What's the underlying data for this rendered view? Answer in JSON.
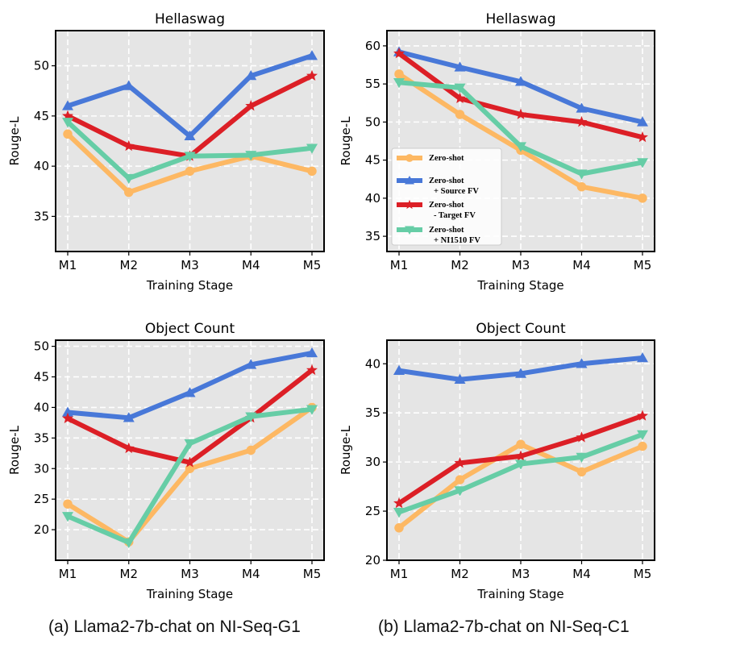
{
  "colors": {
    "zeroshot": "#FDB863",
    "source": "#4878D8",
    "target": "#DC1F26",
    "ni1510": "#66CDA6",
    "panel_bg": "#E5E5E5",
    "grid": "#FFFFFF"
  },
  "captions": {
    "a": "(a) Llama2-7b-chat on NI-Seq-G1",
    "b": "(b) Llama2-7b-chat on NI-Seq-C1"
  },
  "legend": [
    {
      "key": "zeroshot",
      "lines": [
        "Zero-shot"
      ],
      "marker": "circle"
    },
    {
      "key": "source",
      "lines": [
        "Zero-shot",
        "+ Source FV"
      ],
      "marker": "triangle-up"
    },
    {
      "key": "target",
      "lines": [
        "Zero-shot",
        "- Target FV"
      ],
      "marker": "star"
    },
    {
      "key": "ni1510",
      "lines": [
        "Zero-shot",
        "+ NI1510 FV"
      ],
      "marker": "triangle-down"
    }
  ],
  "chart_data": [
    {
      "type": "line",
      "title": "Hellaswag",
      "xlabel": "Training Stage",
      "ylabel": "Rouge-L",
      "categories": [
        "M1",
        "M2",
        "M3",
        "M4",
        "M5"
      ],
      "ylim": [
        31.5,
        53.5
      ],
      "yticks": [
        35,
        40,
        45,
        50
      ],
      "series": [
        {
          "key": "zeroshot",
          "name": "Zero-shot",
          "values": [
            43.2,
            37.4,
            39.5,
            41.0,
            39.5
          ]
        },
        {
          "key": "source",
          "name": "Zero-shot + Source FV",
          "values": [
            46.0,
            48.0,
            43.0,
            49.0,
            51.0
          ]
        },
        {
          "key": "target",
          "name": "Zero-shot - Target FV",
          "values": [
            45.0,
            42.0,
            41.0,
            46.0,
            49.0
          ]
        },
        {
          "key": "ni1510",
          "name": "Zero-shot + NI1510 FV",
          "values": [
            44.4,
            38.8,
            41.0,
            41.1,
            41.8
          ]
        }
      ]
    },
    {
      "type": "line",
      "title": "Hellaswag",
      "xlabel": "Training Stage",
      "ylabel": "Rouge-L",
      "categories": [
        "M1",
        "M2",
        "M3",
        "M4",
        "M5"
      ],
      "ylim": [
        33.0,
        62.0
      ],
      "yticks": [
        35,
        40,
        45,
        50,
        55,
        60
      ],
      "legend_location": "center-left",
      "series": [
        {
          "key": "zeroshot",
          "name": "Zero-shot",
          "values": [
            56.3,
            51.0,
            46.3,
            41.5,
            40.0
          ]
        },
        {
          "key": "source",
          "name": "Zero-shot + Source FV",
          "values": [
            59.2,
            57.2,
            55.3,
            51.8,
            50.0
          ]
        },
        {
          "key": "target",
          "name": "Zero-shot - Target FV",
          "values": [
            59.0,
            53.1,
            51.0,
            50.0,
            48.0
          ]
        },
        {
          "key": "ni1510",
          "name": "Zero-shot + NI1510 FV",
          "values": [
            55.2,
            54.5,
            46.8,
            43.2,
            44.7
          ]
        }
      ]
    },
    {
      "type": "line",
      "title": "Object Count",
      "xlabel": "Training Stage",
      "ylabel": "Rouge-L",
      "categories": [
        "M1",
        "M2",
        "M3",
        "M4",
        "M5"
      ],
      "ylim": [
        15.0,
        51.0
      ],
      "yticks": [
        20,
        25,
        30,
        35,
        40,
        45,
        50
      ],
      "series": [
        {
          "key": "zeroshot",
          "name": "Zero-shot",
          "values": [
            24.2,
            18.0,
            30.0,
            33.0,
            40.0
          ]
        },
        {
          "key": "source",
          "name": "Zero-shot + Source FV",
          "values": [
            39.2,
            38.3,
            42.4,
            47.0,
            48.9
          ]
        },
        {
          "key": "target",
          "name": "Zero-shot - Target FV",
          "values": [
            38.2,
            33.3,
            31.0,
            38.3,
            46.1
          ]
        },
        {
          "key": "ni1510",
          "name": "Zero-shot + NI1510 FV",
          "values": [
            22.2,
            17.9,
            34.1,
            38.5,
            39.7
          ]
        }
      ]
    },
    {
      "type": "line",
      "title": "Object Count",
      "xlabel": "Training Stage",
      "ylabel": "Rouge-L",
      "categories": [
        "M1",
        "M2",
        "M3",
        "M4",
        "M5"
      ],
      "ylim": [
        20.0,
        42.4
      ],
      "yticks": [
        20,
        25,
        30,
        35,
        40
      ],
      "series": [
        {
          "key": "zeroshot",
          "name": "Zero-shot",
          "values": [
            23.3,
            28.2,
            31.8,
            29.0,
            31.6
          ]
        },
        {
          "key": "source",
          "name": "Zero-shot + Source FV",
          "values": [
            39.3,
            38.4,
            39.0,
            40.0,
            40.6
          ]
        },
        {
          "key": "target",
          "name": "Zero-shot - Target FV",
          "values": [
            25.8,
            29.9,
            30.6,
            32.5,
            34.7
          ]
        },
        {
          "key": "ni1510",
          "name": "Zero-shot + NI1510 FV",
          "values": [
            24.9,
            27.1,
            29.8,
            30.5,
            32.8
          ]
        }
      ]
    }
  ]
}
